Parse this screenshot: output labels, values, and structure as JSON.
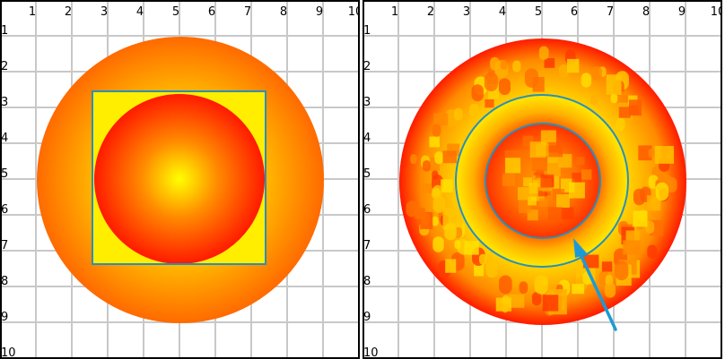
{
  "panels": [
    {
      "id": "left",
      "x_ticks": [
        "1",
        "2",
        "3",
        "4",
        "5",
        "6",
        "7",
        "8",
        "9",
        "10"
      ],
      "y_ticks": [
        "1",
        "2",
        "3",
        "4",
        "5",
        "6",
        "7",
        "8",
        "9",
        "10"
      ]
    },
    {
      "id": "right",
      "x_ticks": [
        "1",
        "2",
        "3",
        "4",
        "5",
        "6",
        "7",
        "8",
        "9",
        "10"
      ],
      "y_ticks": [
        "1",
        "2",
        "3",
        "4",
        "5",
        "6",
        "7",
        "8",
        "9",
        "10"
      ]
    }
  ],
  "colors": {
    "grid": "#c8c8c8",
    "border": "#000000",
    "outline": "#2a8fb8",
    "arrow": "#1d9ad6",
    "gradient_center": "#ffff00",
    "gradient_mid": "#ffa500",
    "gradient_edge": "#ff1a00"
  }
}
